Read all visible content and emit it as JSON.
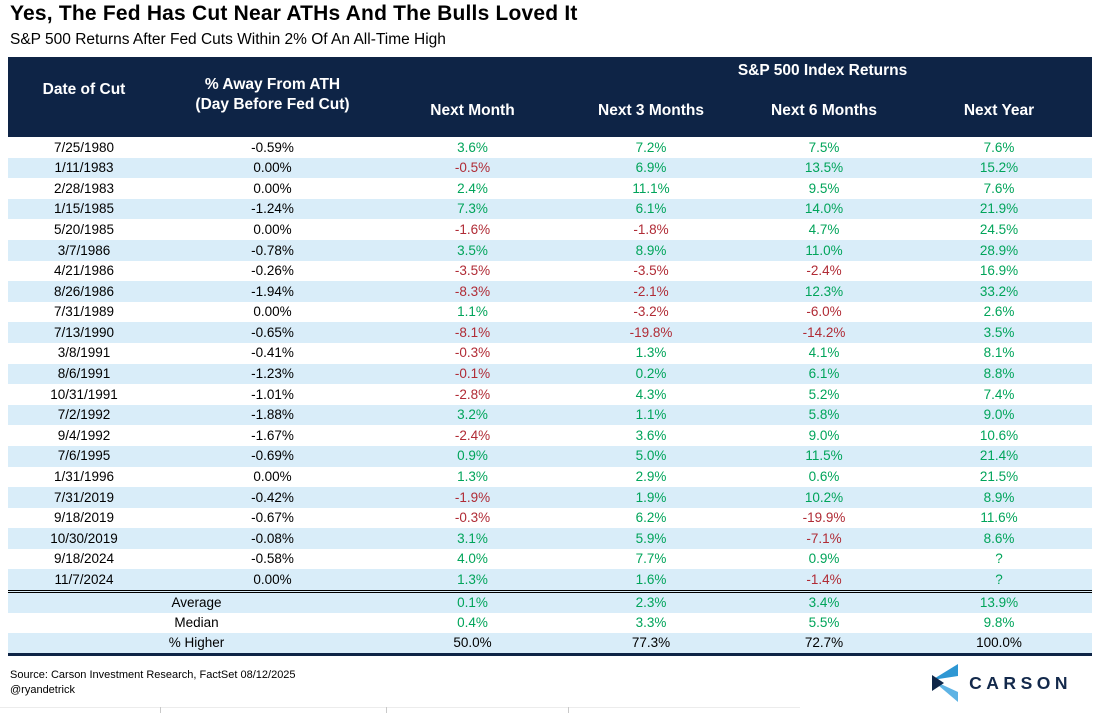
{
  "chart_data": {
    "type": "table",
    "title": "Yes, The Fed Has Cut Near ATHs And The Bulls Loved It",
    "subtitle": "S&P 500 Returns After Fed Cuts Within 2% Of An All-Time High",
    "group_header": "S&P 500 Index Returns",
    "columns": [
      "Date of Cut",
      "% Away From ATH\n(Day Before Fed Cut)",
      "Next Month",
      "Next 3 Months",
      "Next 6 Months",
      "Next Year"
    ],
    "rows": [
      [
        "7/25/1980",
        "-0.59%",
        "3.6%",
        "7.2%",
        "7.5%",
        "7.6%"
      ],
      [
        "1/11/1983",
        "0.00%",
        "-0.5%",
        "6.9%",
        "13.5%",
        "15.2%"
      ],
      [
        "2/28/1983",
        "0.00%",
        "2.4%",
        "11.1%",
        "9.5%",
        "7.6%"
      ],
      [
        "1/15/1985",
        "-1.24%",
        "7.3%",
        "6.1%",
        "14.0%",
        "21.9%"
      ],
      [
        "5/20/1985",
        "0.00%",
        "-1.6%",
        "-1.8%",
        "4.7%",
        "24.5%"
      ],
      [
        "3/7/1986",
        "-0.78%",
        "3.5%",
        "8.9%",
        "11.0%",
        "28.9%"
      ],
      [
        "4/21/1986",
        "-0.26%",
        "-3.5%",
        "-3.5%",
        "-2.4%",
        "16.9%"
      ],
      [
        "8/26/1986",
        "-1.94%",
        "-8.3%",
        "-2.1%",
        "12.3%",
        "33.2%"
      ],
      [
        "7/31/1989",
        "0.00%",
        "1.1%",
        "-3.2%",
        "-6.0%",
        "2.6%"
      ],
      [
        "7/13/1990",
        "-0.65%",
        "-8.1%",
        "-19.8%",
        "-14.2%",
        "3.5%"
      ],
      [
        "3/8/1991",
        "-0.41%",
        "-0.3%",
        "1.3%",
        "4.1%",
        "8.1%"
      ],
      [
        "8/6/1991",
        "-1.23%",
        "-0.1%",
        "0.2%",
        "6.1%",
        "8.8%"
      ],
      [
        "10/31/1991",
        "-1.01%",
        "-2.8%",
        "4.3%",
        "5.2%",
        "7.4%"
      ],
      [
        "7/2/1992",
        "-1.88%",
        "3.2%",
        "1.1%",
        "5.8%",
        "9.0%"
      ],
      [
        "9/4/1992",
        "-1.67%",
        "-2.4%",
        "3.6%",
        "9.0%",
        "10.6%"
      ],
      [
        "7/6/1995",
        "-0.69%",
        "0.9%",
        "5.0%",
        "11.5%",
        "21.4%"
      ],
      [
        "1/31/1996",
        "0.00%",
        "1.3%",
        "2.9%",
        "0.6%",
        "21.5%"
      ],
      [
        "7/31/2019",
        "-0.42%",
        "-1.9%",
        "1.9%",
        "10.2%",
        "8.9%"
      ],
      [
        "9/18/2019",
        "-0.67%",
        "-0.3%",
        "6.2%",
        "-19.9%",
        "11.6%"
      ],
      [
        "10/30/2019",
        "-0.08%",
        "3.1%",
        "5.9%",
        "-7.1%",
        "8.6%"
      ],
      [
        "9/18/2024",
        "-0.58%",
        "4.0%",
        "7.7%",
        "0.9%",
        "?"
      ],
      [
        "11/7/2024",
        "0.00%",
        "1.3%",
        "1.6%",
        "-1.4%",
        "?"
      ]
    ],
    "summary_rows": [
      [
        "Average",
        "0.1%",
        "2.3%",
        "3.4%",
        "13.9%"
      ],
      [
        "Median",
        "0.4%",
        "3.3%",
        "5.5%",
        "9.8%"
      ],
      [
        "% Higher",
        "50.0%",
        "77.3%",
        "72.7%",
        "100.0%"
      ]
    ],
    "colors": {
      "header_bg": "#0E2446",
      "stripe_bg": "#D9EDF9",
      "positive": "#00A45A",
      "negative": "#B02B35",
      "brand_navy": "#13294B",
      "logo_blue_top": "#2E97D3",
      "logo_blue_bottom": "#5EB3E4"
    }
  },
  "footer": {
    "source": "Source: Carson Investment Research, FactSet 08/12/2025",
    "handle": "@ryandetrick",
    "brand": "CARSON",
    "logo_icon": "carson-chevron-icon"
  }
}
